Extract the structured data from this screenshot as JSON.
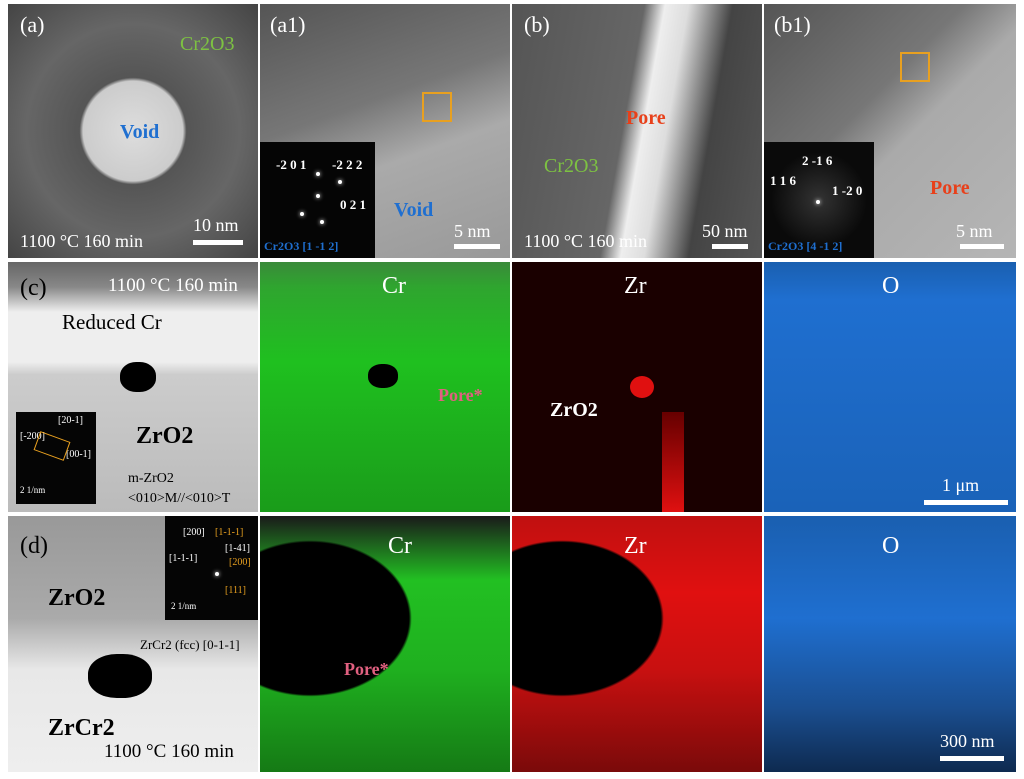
{
  "row1": {
    "a": {
      "label": "(a)",
      "phase": "Cr2O3",
      "feature": "Void",
      "condition": "1100 °C 160 min",
      "scale": "10 nm"
    },
    "a1": {
      "label": "(a1)",
      "feature": "Void",
      "scale": "5 nm",
      "fft_spots": [
        "-2 0 1",
        "-2 2 2",
        "0 2 1"
      ],
      "zone_axis": "Cr2O3 [1 -1 2]"
    },
    "b": {
      "label": "(b)",
      "phase": "Cr2O3",
      "feature": "Pore",
      "condition": "1100 °C 160 min",
      "scale": "50 nm"
    },
    "b1": {
      "label": "(b1)",
      "feature": "Pore",
      "scale": "5 nm",
      "fft_spots": [
        "2 -1 6",
        "1 1 6",
        "1 -2 0"
      ],
      "zone_axis": "Cr2O3 [4 -1 2]"
    }
  },
  "row2": {
    "c": {
      "label": "(c)",
      "condition": "1100 °C 160 min",
      "region": "Reduced Cr",
      "particle": "ZrO2",
      "saed": [
        "[-200]",
        "[20-1]",
        "[00-1]"
      ],
      "saed_scale": "2 1/nm",
      "orientation_1": "m-ZrO2",
      "orientation_2": "<010>M//<010>T"
    },
    "maps": [
      {
        "element": "Cr",
        "note": "Pore*",
        "color": "#22c022"
      },
      {
        "element": "Zr",
        "note": "ZrO2",
        "color": "#e01010"
      },
      {
        "element": "O",
        "note": "",
        "color": "#1f6fd0"
      }
    ],
    "scale": "1 μm"
  },
  "row3": {
    "d": {
      "label": "(d)",
      "phase1": "ZrO2",
      "phase2": "ZrCr2",
      "condition": "1100 °C 160 min",
      "saed_white": [
        "[200]",
        "[1-1-1]",
        "[1-41]"
      ],
      "saed_orange": [
        "[1-1-1]",
        "[200]",
        "[111]"
      ],
      "saed_scale": "2 1/nm",
      "zone": "ZrCr2 (fcc) [0-1-1]"
    },
    "maps": [
      {
        "element": "Cr",
        "note": "Pore*",
        "color": "#22c022"
      },
      {
        "element": "Zr",
        "color": "#e01010"
      },
      {
        "element": "O",
        "color": "#1f6fd0"
      }
    ],
    "scale": "300 nm"
  },
  "colors": {
    "cr2o3_label": "#7dc242",
    "void_label": "#1f6fd0",
    "pore_label": "#e8401a",
    "pore_star": "#e06080",
    "box": "#e8a020"
  }
}
